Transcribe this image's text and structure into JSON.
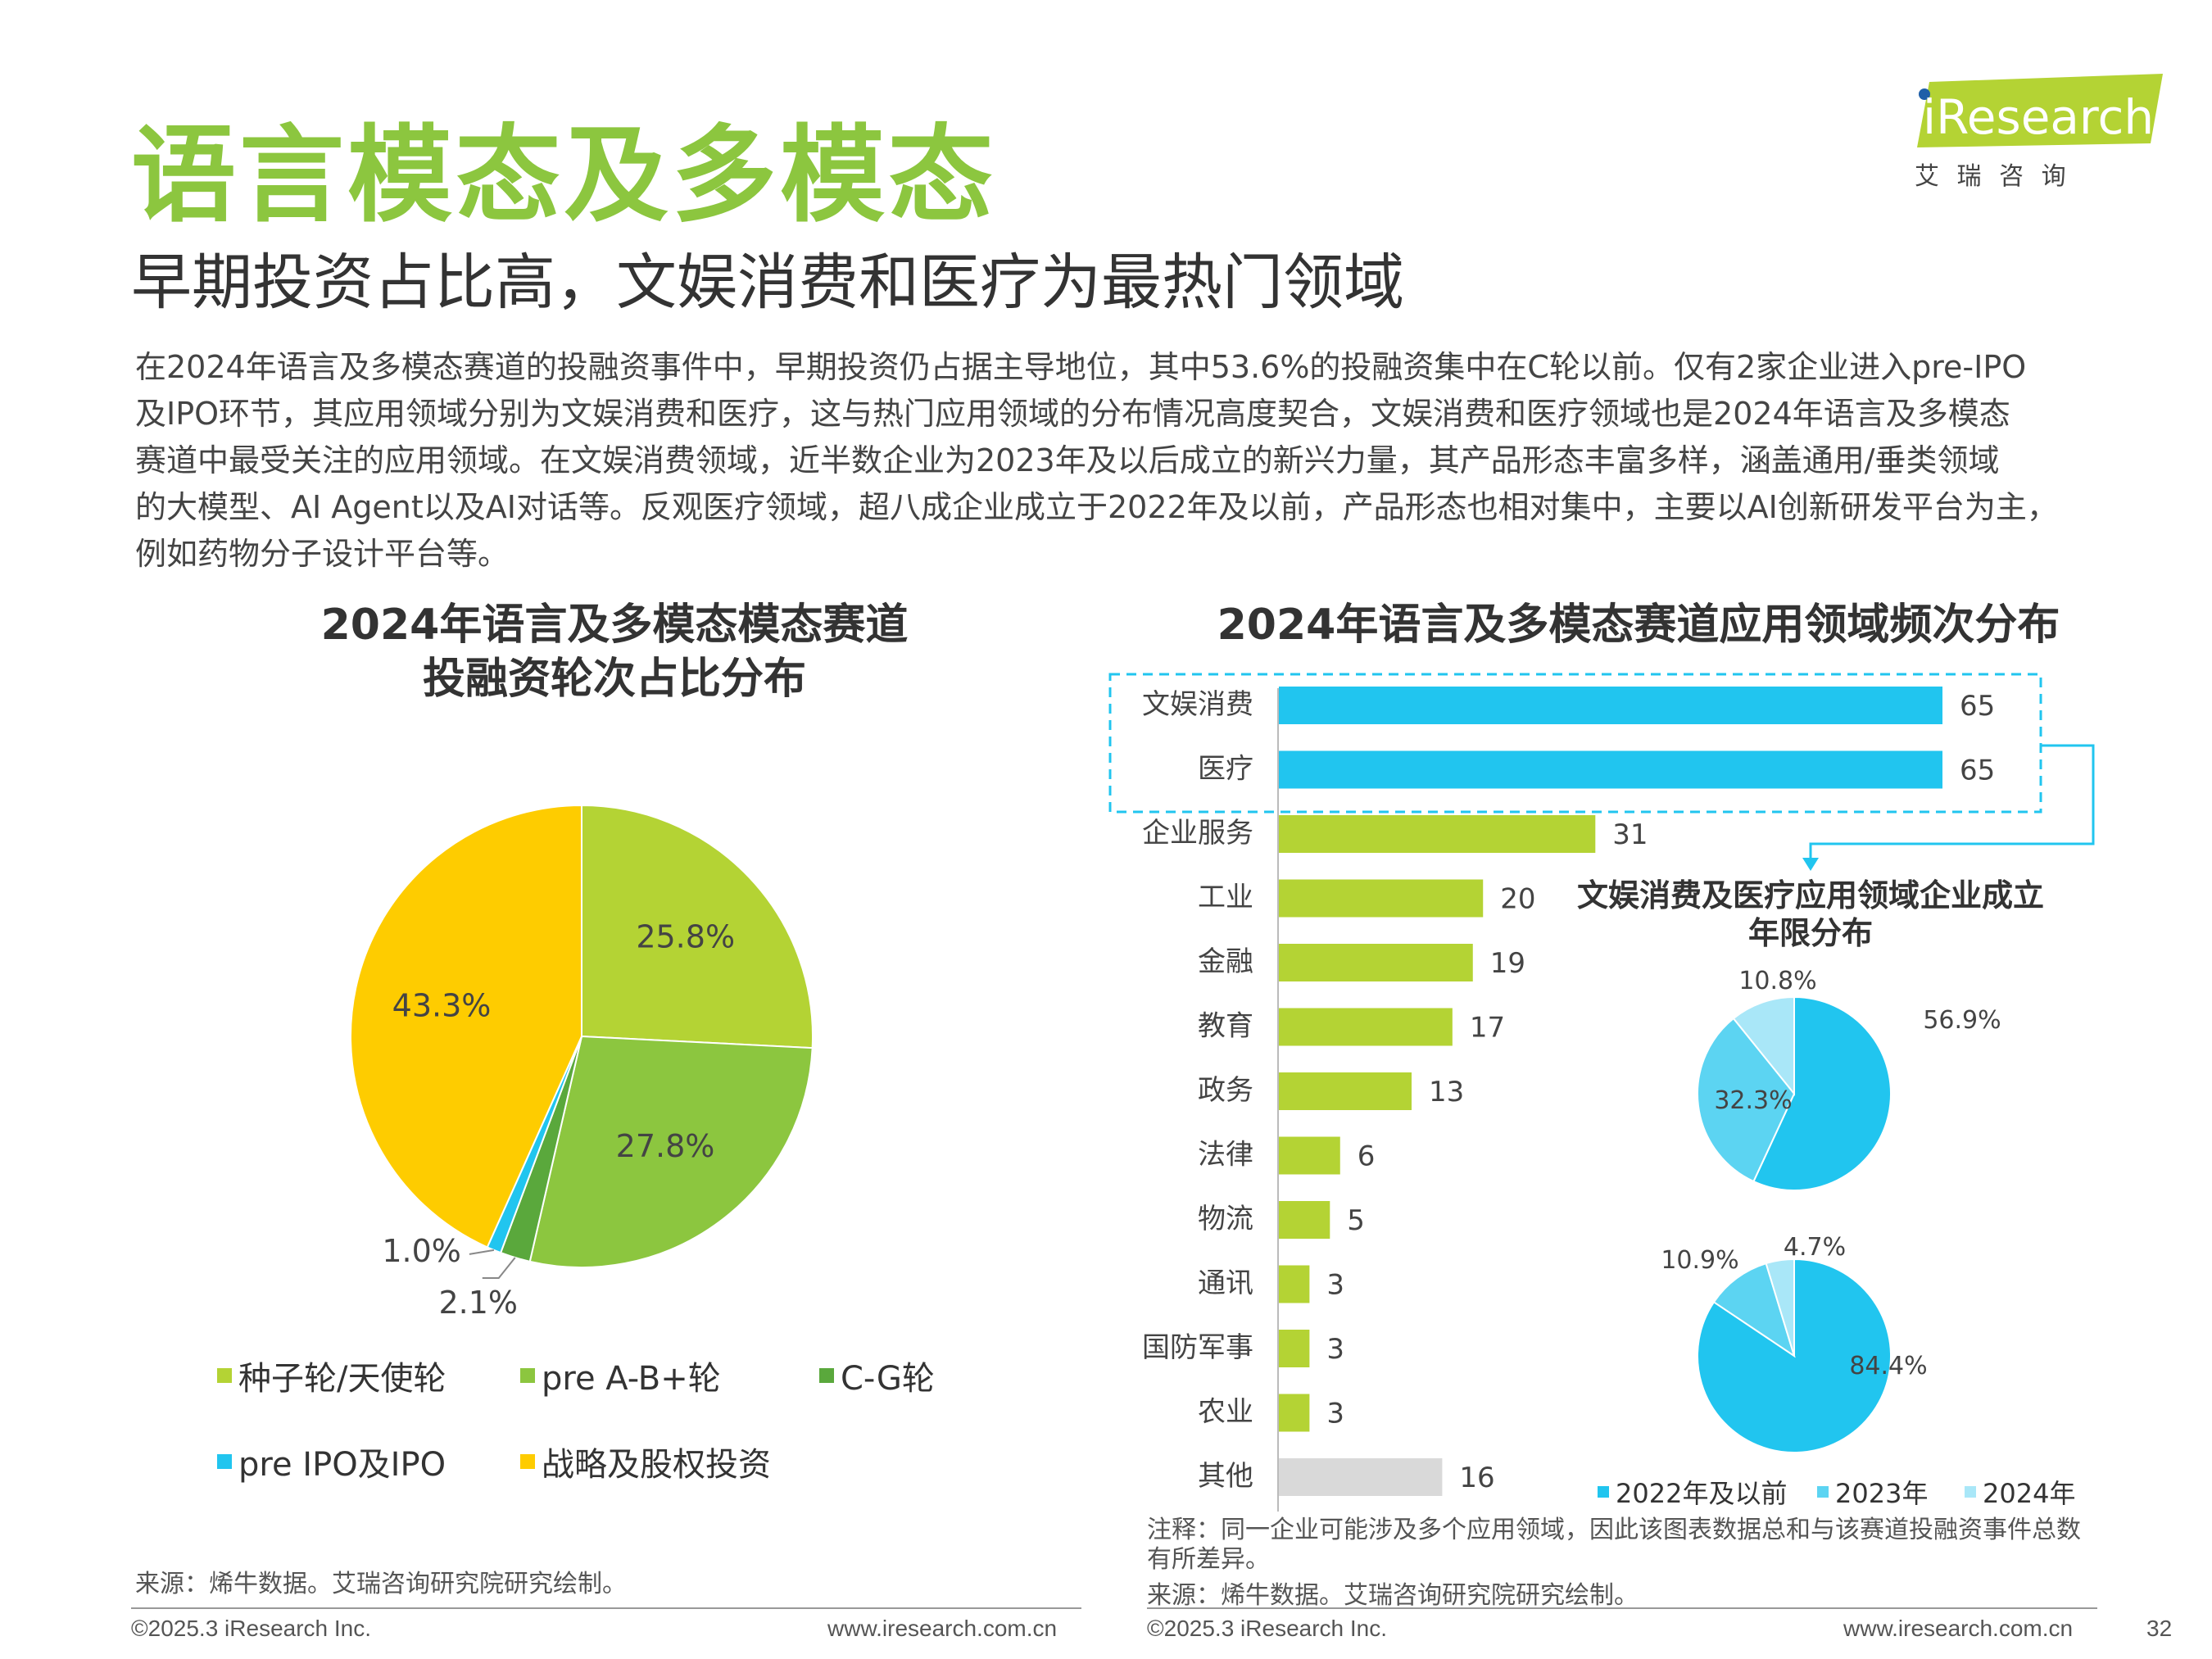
{
  "page": {
    "title": "语言模态及多模态",
    "subtitle": "早期投资占比高，文娱消费和医疗为最热门领域",
    "body_lines": [
      "在2024年语言及多模态赛道的投融资事件中，早期投资仍占据主导地位，其中53.6%的投融资集中在C轮以前。仅有2家企业进入pre-IPO",
      "及IPO环节，其应用领域分别为文娱消费和医疗，这与热门应用领域的分布情况高度契合，文娱消费和医疗领域也是2024年语言及多模态",
      "赛道中最受关注的应用领域。在文娱消费领域，近半数企业为2023年及以后成立的新兴力量，其产品形态丰富多样，涵盖通用/垂类领域",
      "的大模型、AI Agent以及AI对话等。反观医疗领域，超八成企业成立于2022年及以前，产品形态也相对集中，主要以AI创新研发平台为主，",
      "例如药物分子设计平台等。"
    ],
    "logo": {
      "brand": "iResearch",
      "cn": "艾 瑞 咨 询"
    },
    "footer": {
      "left_copyright": "©2025.3 iResearch Inc.",
      "left_url": "www.iresearch.com.cn",
      "right_copyright": "©2025.3 iResearch Inc.",
      "right_url": "www.iresearch.com.cn",
      "page_number": "32"
    },
    "source_left": "来源：烯牛数据。艾瑞咨询研究院研究绘制。",
    "note_right_1": "注释：同一企业可能涉及多个应用领域，因此该图表数据总和与该赛道投融资事件总数",
    "note_right_2": "有所差异。",
    "source_right": "来源：烯牛数据。艾瑞咨询研究院研究绘制。"
  },
  "colors": {
    "green_title": "#8cc63f",
    "yellow_green": "#b4d334",
    "green": "#8cc63f",
    "dark_green": "#5aa83c",
    "cyan": "#21c5ef",
    "yellow": "#fecc00",
    "gray": "#d9d9d9",
    "mid_cyan": "#5cd4f2",
    "light_cyan": "#a9e7f8"
  },
  "chart_data": [
    {
      "type": "pie",
      "title_line1": "2024年语言及多模态模态赛道",
      "title_line2": "投融资轮次占比分布",
      "slices": [
        {
          "label": "种子轮/天使轮",
          "value": 25.8,
          "display": "25.8%"
        },
        {
          "label": "pre A-B+轮",
          "value": 27.8,
          "display": "27.8%"
        },
        {
          "label": "C-G轮",
          "value": 2.1,
          "display": "2.1%"
        },
        {
          "label": "pre IPO及IPO",
          "value": 1.0,
          "display": "1.0%"
        },
        {
          "label": "战略及股权投资",
          "value": 43.3,
          "display": "43.3%"
        }
      ]
    },
    {
      "type": "bar",
      "orientation": "horizontal",
      "title": "2024年语言及多模态赛道应用领域频次分布",
      "categories": [
        "文娱消费",
        "医疗",
        "企业服务",
        "工业",
        "金融",
        "教育",
        "政务",
        "法律",
        "物流",
        "通讯",
        "国防军事",
        "农业",
        "其他"
      ],
      "values": [
        65,
        65,
        31,
        20,
        19,
        17,
        13,
        6,
        5,
        3,
        3,
        3,
        16
      ],
      "highlighted": [
        "文娱消费",
        "医疗"
      ],
      "xlim": [
        0,
        65
      ]
    },
    {
      "type": "pie",
      "title_line1": "文娱消费及医疗应用领域企业成立",
      "title_line2": "年限分布",
      "legend": [
        "2022年及以前",
        "2023年",
        "2024年"
      ],
      "pies": [
        {
          "name": "文娱消费",
          "values": [
            56.9,
            32.3,
            10.8
          ],
          "displays": [
            "56.9%",
            "32.3%",
            "10.8%"
          ]
        },
        {
          "name": "医疗",
          "values": [
            84.4,
            10.9,
            4.7
          ],
          "displays": [
            "84.4%",
            "10.9%",
            "4.7%"
          ]
        }
      ]
    }
  ]
}
